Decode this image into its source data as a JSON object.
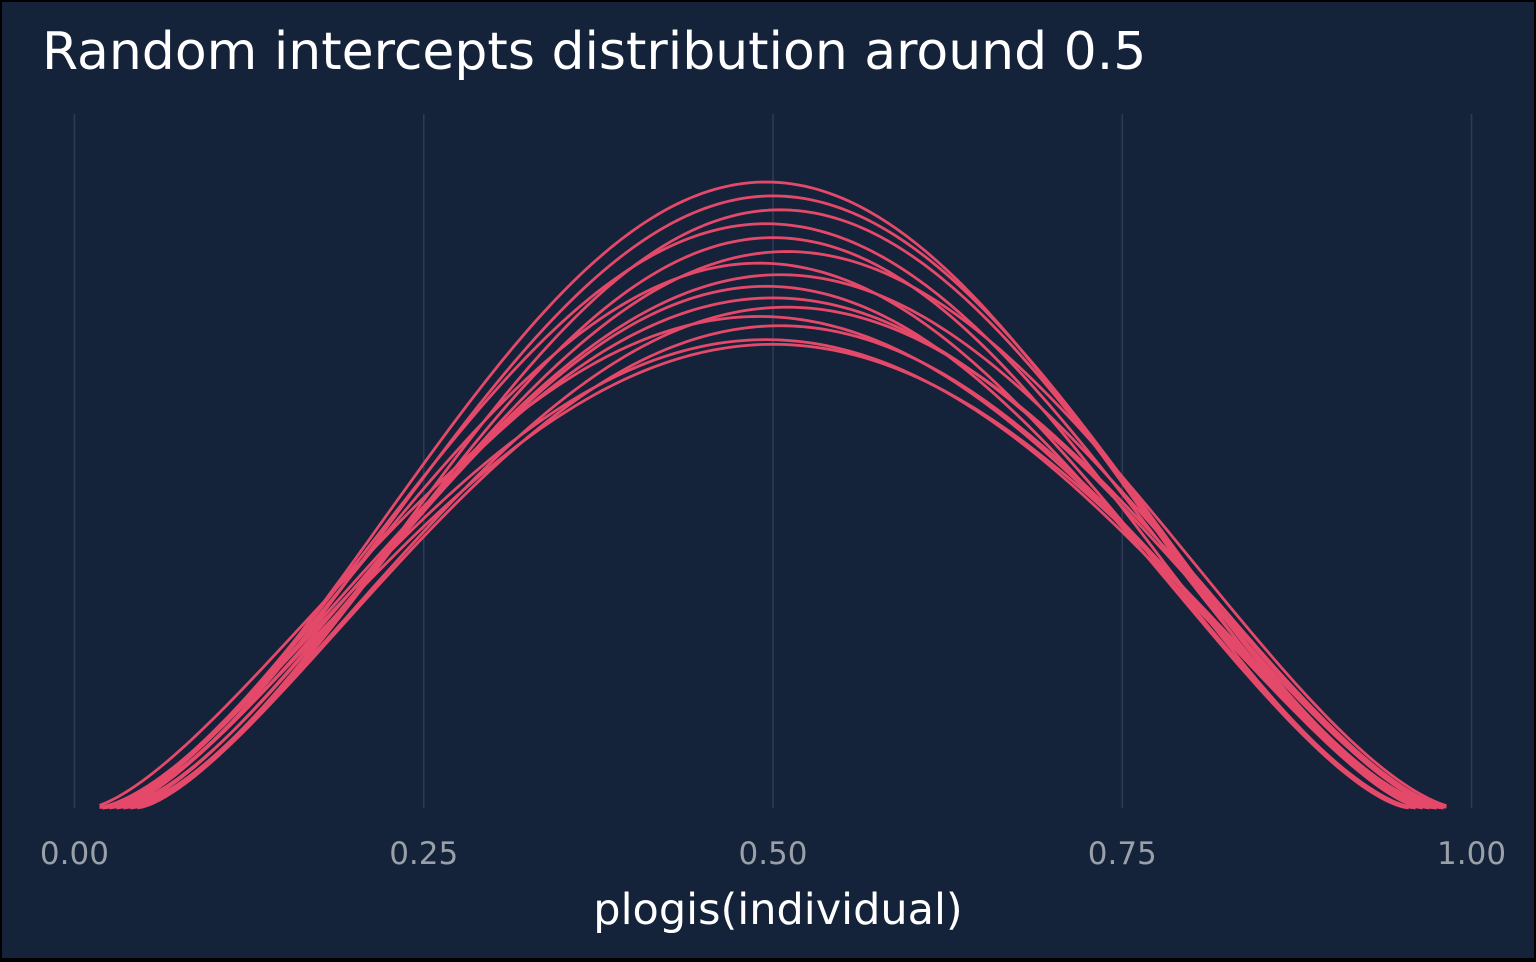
{
  "chart_data": {
    "type": "line",
    "title": "Random intercepts distribution around 0.5",
    "xlabel": "plogis(individual)",
    "ylabel": "",
    "xlim": [
      -0.0175,
      1.0175
    ],
    "xticks": [
      0.0,
      0.25,
      0.5,
      0.75,
      1.0
    ],
    "xtick_labels": [
      "0.00",
      "0.25",
      "0.50",
      "0.75",
      "1.00"
    ],
    "y_axis_shown": false,
    "grid": "vertical major lines only",
    "legend": "none",
    "line_color": "#e5496a",
    "grid_color": "#2c3b52",
    "background_color": "#14223a",
    "note": "",
    "curve_shape": "smooth density curve f(x) = (2/pi) * sqrt(1-u^2) * (1 + a*(0.5-u^2)) with u = (x-center)/half_width; values relative to the tallest curve's peak (1.0)",
    "series": [
      {
        "center": 0.5,
        "half_width": 0.47,
        "a": 0.0
      },
      {
        "center": 0.495,
        "half_width": 0.47,
        "a": 0.02
      },
      {
        "center": 0.505,
        "half_width": 0.46,
        "a": 0.08
      },
      {
        "center": 0.49,
        "half_width": 0.48,
        "a": 0.12
      },
      {
        "center": 0.51,
        "half_width": 0.47,
        "a": 0.16
      },
      {
        "center": 0.5,
        "half_width": 0.48,
        "a": 0.2
      },
      {
        "center": 0.495,
        "half_width": 0.46,
        "a": 0.25
      },
      {
        "center": 0.505,
        "half_width": 0.48,
        "a": 0.3
      },
      {
        "center": 0.49,
        "half_width": 0.47,
        "a": 0.35
      },
      {
        "center": 0.51,
        "half_width": 0.48,
        "a": 0.4
      },
      {
        "center": 0.5,
        "half_width": 0.46,
        "a": 0.46
      },
      {
        "center": 0.495,
        "half_width": 0.48,
        "a": 0.52
      },
      {
        "center": 0.505,
        "half_width": 0.47,
        "a": 0.58
      },
      {
        "center": 0.5,
        "half_width": 0.48,
        "a": 0.64
      },
      {
        "center": 0.495,
        "half_width": 0.48,
        "a": 0.7
      }
    ]
  }
}
